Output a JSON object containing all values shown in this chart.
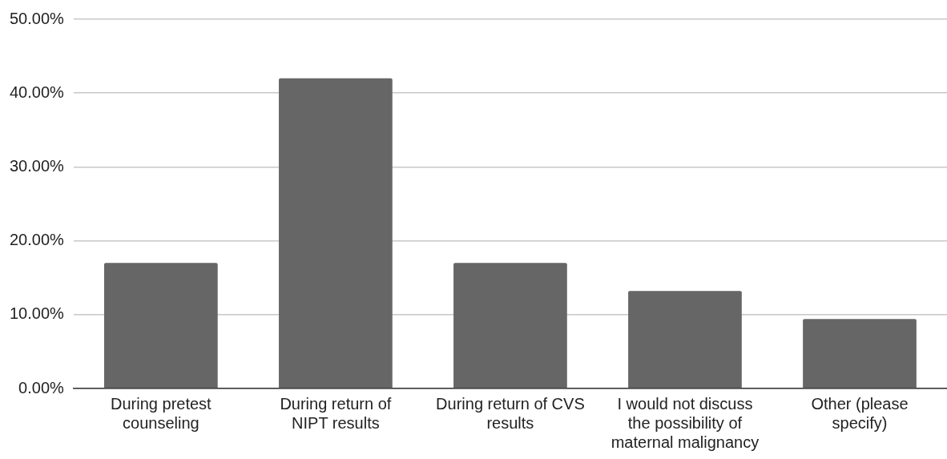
{
  "chart_data": {
    "type": "bar",
    "categories": [
      "During pretest counseling",
      "During return of NIPT results",
      "During return of CVS results",
      "I would not discuss the possibility of maternal malignancy",
      "Other (please specify)"
    ],
    "values": [
      17.0,
      42.0,
      17.0,
      13.2,
      9.4
    ],
    "color": "#666666",
    "ylim": [
      0,
      50
    ],
    "yticks": [
      {
        "value": 0,
        "label": "0.00%"
      },
      {
        "value": 10,
        "label": "10.00%"
      },
      {
        "value": 20,
        "label": "20.00%"
      },
      {
        "value": 30,
        "label": "30.00%"
      },
      {
        "value": 40,
        "label": "40.00%"
      },
      {
        "value": 50,
        "label": "50.00%"
      }
    ],
    "grid": "y",
    "legend": false
  }
}
